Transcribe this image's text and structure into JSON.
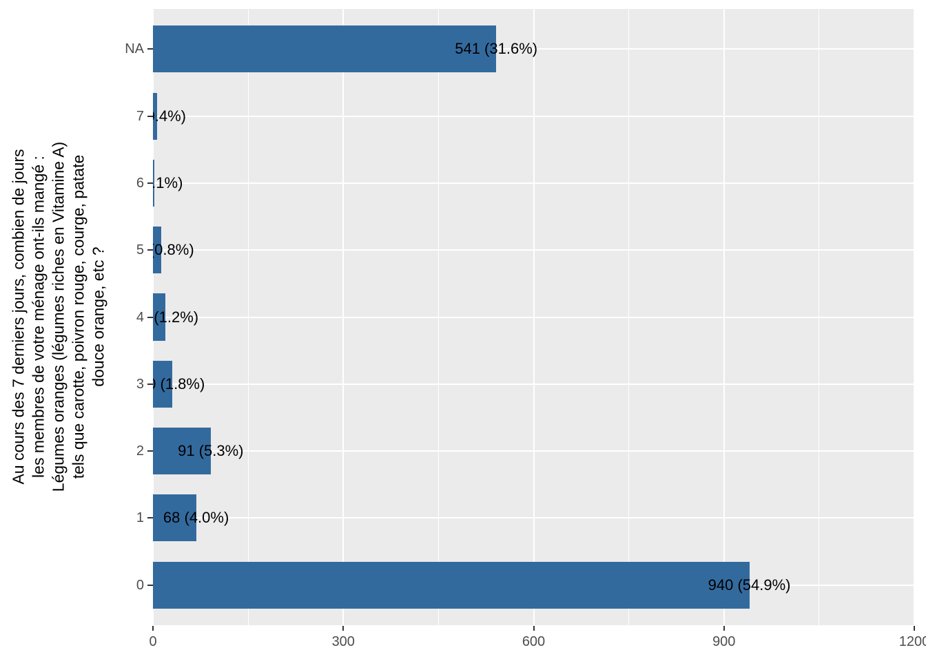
{
  "style": {
    "page_background": "#FFFFFF",
    "panel_background": "#EBEBEB",
    "gridline_color": "#FFFFFF",
    "bar_color": "#336A9E",
    "axis_text_color": "#4D4D4D",
    "tick_mark_color": "#333333",
    "bar_label_color": "#000000"
  },
  "chart_data": {
    "type": "bar",
    "orientation": "horizontal",
    "title": "",
    "xlabel": "",
    "ylabel": "Au cours des 7 derniers jours, combien de jours\nles membres de votre ménage ont-ils mangé :\nLégumes oranges (légumes riches en Vitamine A)\ntels que carotte, poivron rouge, courge, patate\ndouce orange, etc ?",
    "categories_top_to_bottom": [
      "NA",
      "7",
      "6",
      "5",
      "4",
      "3",
      "2",
      "1",
      "0"
    ],
    "values": [
      541,
      7,
      2,
      13,
      20,
      30,
      91,
      68,
      940
    ],
    "bar_labels": [
      "541 (31.6%)",
      "7 (0.4%)",
      "2 (0.1%)",
      "13 (0.8%)",
      "20 (1.2%)",
      "30 (1.8%)",
      "91 (5.3%)",
      "68 (4.0%)",
      "940 (54.9%)"
    ],
    "xlim": [
      0,
      1200
    ],
    "x_major_ticks": [
      0,
      300,
      600,
      900,
      1200
    ],
    "x_tick_labels": [
      "0",
      "300",
      "600",
      "900",
      "1200"
    ],
    "x_minor_gridlines": [
      150,
      450,
      750,
      1050
    ],
    "grid": "white major+minor vertical, white major horizontal, on grey panel",
    "legend_position": "none"
  }
}
